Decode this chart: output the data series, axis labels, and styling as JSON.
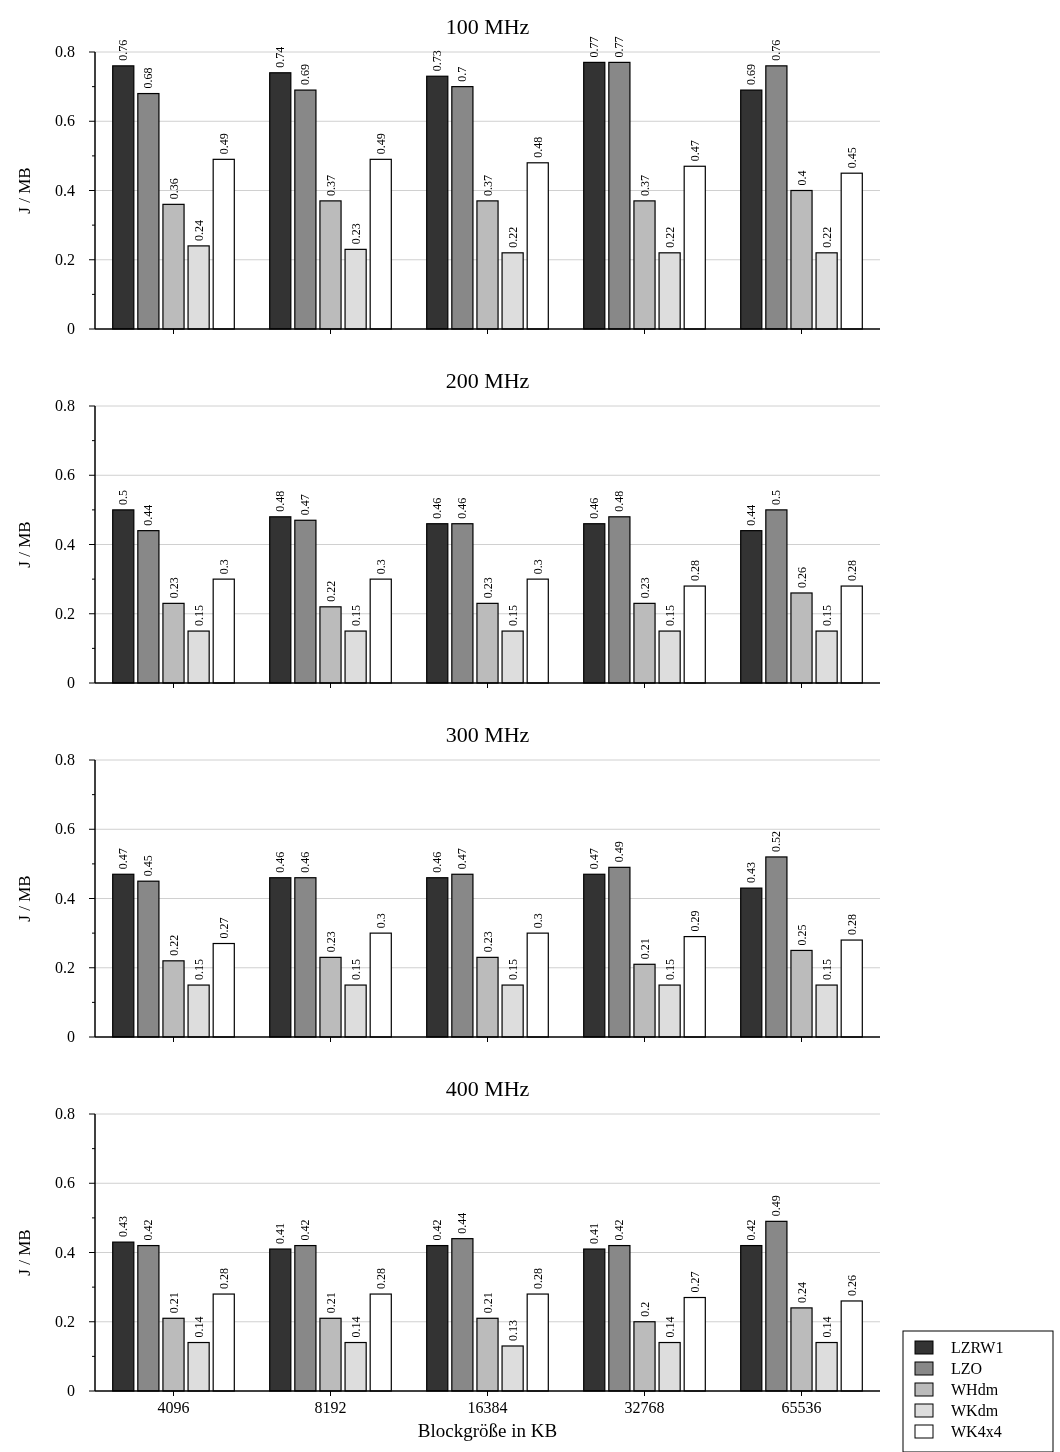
{
  "chart_data": [
    {
      "type": "bar",
      "title": "100 MHz",
      "ylabel": "J / MB",
      "categories": [
        "4096",
        "8192",
        "16384",
        "32768",
        "65536"
      ],
      "series": [
        {
          "color": "#333333",
          "values": [
            0.76,
            0.74,
            0.73,
            0.77,
            0.69
          ]
        },
        {
          "color": "#888888",
          "values": [
            0.68,
            0.69,
            0.7,
            0.77,
            0.76
          ]
        },
        {
          "color": "#bbbbbb",
          "values": [
            0.36,
            0.37,
            0.37,
            0.37,
            0.4
          ]
        },
        {
          "color": "#dddddd",
          "values": [
            0.24,
            0.23,
            0.22,
            0.22,
            0.22
          ]
        },
        {
          "color": "#ffffff",
          "values": [
            0.49,
            0.49,
            0.48,
            0.47,
            0.45
          ]
        }
      ],
      "ylim": [
        0,
        0.8
      ],
      "yticks": [
        0,
        {
          "value": 0.1,
          "label": null
        },
        0.2,
        {
          "value": 0.3,
          "label": null
        },
        0.4,
        {
          "value": 0.5,
          "label": null
        },
        0.6,
        {
          "value": 0.7,
          "label": null
        },
        0.8
      ],
      "grid": "y",
      "data_labels": true,
      "legend": false,
      "tick_labels": "y"
    },
    {
      "type": "bar",
      "title": "200 MHz",
      "ylabel": "J / MB",
      "categories": [
        "4096",
        "8192",
        "16384",
        "32768",
        "65536"
      ],
      "series": [
        {
          "color": "#333333",
          "values": [
            0.5,
            0.48,
            0.46,
            0.46,
            0.44
          ]
        },
        {
          "color": "#888888",
          "values": [
            0.44,
            0.47,
            0.46,
            0.48,
            0.5
          ]
        },
        {
          "color": "#bbbbbb",
          "values": [
            0.23,
            0.22,
            0.23,
            0.23,
            0.26
          ]
        },
        {
          "color": "#dddddd",
          "values": [
            0.15,
            0.15,
            0.15,
            0.15,
            0.15
          ]
        },
        {
          "color": "#ffffff",
          "values": [
            0.3,
            0.3,
            0.3,
            0.28,
            0.28
          ]
        }
      ],
      "ylim": [
        0,
        0.8
      ],
      "yticks": [
        0,
        {
          "value": 0.1,
          "label": null
        },
        0.2,
        {
          "value": 0.3,
          "label": null
        },
        0.4,
        {
          "value": 0.5,
          "label": null
        },
        0.6,
        {
          "value": 0.7,
          "label": null
        },
        0.8
      ],
      "grid": "y",
      "data_labels": true,
      "legend": false,
      "tick_labels": "y"
    },
    {
      "type": "bar",
      "title": "300 MHz",
      "ylabel": "J / MB",
      "categories": [
        "4096",
        "8192",
        "16384",
        "32768",
        "65536"
      ],
      "series": [
        {
          "color": "#333333",
          "values": [
            0.47,
            0.46,
            0.46,
            0.47,
            0.43
          ]
        },
        {
          "color": "#888888",
          "values": [
            0.45,
            0.46,
            0.47,
            0.49,
            0.52
          ]
        },
        {
          "color": "#bbbbbb",
          "values": [
            0.22,
            0.23,
            0.23,
            0.21,
            0.25
          ]
        },
        {
          "color": "#dddddd",
          "values": [
            0.15,
            0.15,
            0.15,
            0.15,
            0.15
          ]
        },
        {
          "color": "#ffffff",
          "values": [
            0.27,
            0.3,
            0.3,
            0.29,
            0.28
          ]
        }
      ],
      "ylim": [
        0,
        0.8
      ],
      "yticks": [
        0,
        {
          "value": 0.1,
          "label": null
        },
        0.2,
        {
          "value": 0.3,
          "label": null
        },
        0.4,
        {
          "value": 0.5,
          "label": null
        },
        0.6,
        {
          "value": 0.7,
          "label": null
        },
        0.8
      ],
      "grid": "y",
      "data_labels": true,
      "legend": false,
      "tick_labels": "y"
    },
    {
      "type": "bar",
      "title": "400 MHz",
      "ylabel": "J / MB",
      "xlabel": "Blockgröße in KB",
      "categories": [
        "4096",
        "8192",
        "16384",
        "32768",
        "65536"
      ],
      "series": [
        {
          "name": "LZRW1",
          "color": "#333333",
          "values": [
            0.43,
            0.41,
            0.42,
            0.41,
            0.42
          ]
        },
        {
          "name": "LZO",
          "color": "#888888",
          "values": [
            0.42,
            0.42,
            0.44,
            0.42,
            0.49
          ]
        },
        {
          "name": "WHdm",
          "color": "#bbbbbb",
          "values": [
            0.21,
            0.21,
            0.21,
            0.2,
            0.24
          ]
        },
        {
          "name": "WKdm",
          "color": "#dddddd",
          "values": [
            0.14,
            0.14,
            0.13,
            0.14,
            0.14
          ]
        },
        {
          "name": "WK4x4",
          "color": "#ffffff",
          "values": [
            0.28,
            0.28,
            0.28,
            0.27,
            0.26
          ]
        }
      ],
      "ylim": [
        0,
        0.8
      ],
      "yticks": [
        0,
        {
          "value": 0.1,
          "label": null
        },
        0.2,
        {
          "value": 0.3,
          "label": null
        },
        0.4,
        {
          "value": 0.5,
          "label": null
        },
        0.6,
        {
          "value": 0.7,
          "label": null
        },
        0.8
      ],
      "grid": "y",
      "data_labels": true,
      "legend": "bottom right"
    }
  ]
}
